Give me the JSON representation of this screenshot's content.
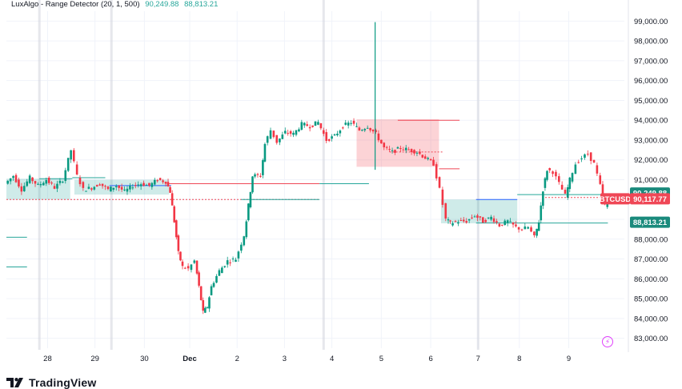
{
  "indicator": {
    "title": "LuxAlgo - Range Detector (20, 1, 500)",
    "value_upper": "90,249.88",
    "value_lower": "88,813.21"
  },
  "branding": {
    "logo_text": "TradingView"
  },
  "chart_data": {
    "type": "candlestick",
    "symbol": "BTCUSD",
    "y_axis": {
      "ticks": [
        83000,
        84000,
        85000,
        86000,
        87000,
        88000,
        89000,
        90000,
        91000,
        92000,
        93000,
        94000,
        95000,
        96000,
        97000,
        98000,
        99000
      ],
      "tick_labels": [
        "83,000.00",
        "84,000.00",
        "85,000.00",
        "86,000.00",
        "87,000.00",
        "88,000.00",
        "89,000.00",
        "90,000.00",
        "91,000.00",
        "92,000.00",
        "93,000.00",
        "94,000.00",
        "95,000.00",
        "96,000.00",
        "97,000.00",
        "98,000.00",
        "99,000.00"
      ],
      "range": [
        82500,
        99500
      ]
    },
    "x_axis": {
      "ticks": [
        "28",
        "29",
        "30",
        "Dec",
        "2",
        "3",
        "4",
        "5",
        "6",
        "7",
        "8",
        "9"
      ]
    },
    "price_labels": [
      {
        "name": "range-upper",
        "text": "90,249.88",
        "value": 90249.88,
        "color": "#1a8a7c"
      },
      {
        "name": "symbol",
        "text": "BTCUSD",
        "value": 90117.77,
        "color": "#ef4756"
      },
      {
        "name": "last-price",
        "text": "90,117.77",
        "value": 90117.77,
        "color": "#ef4756"
      },
      {
        "name": "range-lower",
        "text": "88,813.21",
        "value": 88813.21,
        "color": "#1a8a7c"
      }
    ],
    "ranges": [
      {
        "x0": 0.0,
        "x1": 1.55,
        "top": 91050,
        "bottom": 90000,
        "type": "green"
      },
      {
        "x0": 1.65,
        "x1": 3.95,
        "top": 91000,
        "bottom": 90250,
        "type": "green"
      },
      {
        "x0": 8.5,
        "x1": 10.5,
        "top": 94050,
        "bottom": 91650,
        "type": "red"
      },
      {
        "x0": 10.55,
        "x1": 12.4,
        "top": 90000,
        "bottom": 88800,
        "type": "green"
      }
    ],
    "level_lines": [
      {
        "x0": 0.8,
        "x1": 1.6,
        "y": 91050,
        "color": "#26a69a"
      },
      {
        "x0": 1.6,
        "x1": 2.4,
        "y": 91100,
        "color": "#26a69a"
      },
      {
        "x0": 2.5,
        "x1": 4.0,
        "y": 90700,
        "color": "#2962ff"
      },
      {
        "x0": 0.0,
        "x1": 0.5,
        "y": 88100,
        "color": "#26a69a"
      },
      {
        "x0": 0.0,
        "x1": 0.5,
        "y": 86600,
        "color": "#26a69a"
      },
      {
        "x0": 3.9,
        "x1": 7.6,
        "y": 90800,
        "color": "#ef4756"
      },
      {
        "x0": 0.0,
        "x1": 7.6,
        "y": 90000,
        "color": "#ef4756",
        "dash": true
      },
      {
        "x0": 5.7,
        "x1": 7.6,
        "y": 90000,
        "color": "#26a69a"
      },
      {
        "x0": 7.6,
        "x1": 8.8,
        "y": 90800,
        "color": "#26a69a"
      },
      {
        "x0": 9.5,
        "x1": 11.0,
        "y": 94000,
        "color": "#ef4756"
      },
      {
        "x0": 10.5,
        "x1": 11.0,
        "y": 91550,
        "color": "#ef4756"
      },
      {
        "x0": 9.3,
        "x1": 10.6,
        "y": 92400,
        "color": "#ef4756",
        "dash": true
      },
      {
        "x0": 11.4,
        "x1": 12.4,
        "y": 90000,
        "color": "#2962ff"
      },
      {
        "x0": 11.4,
        "x1": 14.6,
        "y": 88813,
        "color": "#26a69a"
      },
      {
        "x0": 12.4,
        "x1": 14.6,
        "y": 90249,
        "color": "#26a69a"
      },
      {
        "x0": 13.0,
        "x1": 14.6,
        "y": 90100,
        "color": "#ef4756",
        "dash": true
      }
    ],
    "session_separators": [
      0.8,
      2.55,
      7.7,
      11.45
    ],
    "spike": {
      "x": 8.95,
      "high": 98950,
      "low": 91500
    },
    "price_path": [
      [
        0.0,
        90800
      ],
      [
        0.2,
        91200
      ],
      [
        0.4,
        90500
      ],
      [
        0.6,
        91100
      ],
      [
        0.8,
        90700
      ],
      [
        1.0,
        91000
      ],
      [
        1.2,
        90600
      ],
      [
        1.4,
        91000
      ],
      [
        1.6,
        92500
      ],
      [
        1.75,
        91200
      ],
      [
        1.9,
        90500
      ],
      [
        2.1,
        90600
      ],
      [
        2.3,
        90800
      ],
      [
        2.5,
        90500
      ],
      [
        2.7,
        90700
      ],
      [
        2.9,
        90400
      ],
      [
        3.1,
        90700
      ],
      [
        3.3,
        90800
      ],
      [
        3.5,
        90700
      ],
      [
        3.7,
        91000
      ],
      [
        3.9,
        90900
      ],
      [
        4.0,
        90400
      ],
      [
        4.1,
        88900
      ],
      [
        4.2,
        87300
      ],
      [
        4.3,
        86600
      ],
      [
        4.45,
        86500
      ],
      [
        4.6,
        86900
      ],
      [
        4.7,
        85600
      ],
      [
        4.8,
        84300
      ],
      [
        4.9,
        84600
      ],
      [
        5.0,
        85600
      ],
      [
        5.2,
        86400
      ],
      [
        5.4,
        86900
      ],
      [
        5.6,
        87000
      ],
      [
        5.8,
        88200
      ],
      [
        5.9,
        89700
      ],
      [
        6.0,
        91200
      ],
      [
        6.2,
        91200
      ],
      [
        6.3,
        92800
      ],
      [
        6.45,
        93500
      ],
      [
        6.6,
        92900
      ],
      [
        6.8,
        93400
      ],
      [
        7.0,
        93300
      ],
      [
        7.2,
        93800
      ],
      [
        7.4,
        93700
      ],
      [
        7.6,
        93900
      ],
      [
        7.8,
        93000
      ],
      [
        8.0,
        93200
      ],
      [
        8.2,
        93700
      ],
      [
        8.4,
        93900
      ],
      [
        8.6,
        93500
      ],
      [
        8.8,
        93700
      ],
      [
        9.0,
        93300
      ],
      [
        9.2,
        92600
      ],
      [
        9.4,
        92400
      ],
      [
        9.6,
        92600
      ],
      [
        9.8,
        92500
      ],
      [
        10.0,
        92400
      ],
      [
        10.2,
        92100
      ],
      [
        10.4,
        91800
      ],
      [
        10.55,
        90500
      ],
      [
        10.7,
        89000
      ],
      [
        10.8,
        88800
      ],
      [
        11.0,
        88900
      ],
      [
        11.2,
        88900
      ],
      [
        11.4,
        89200
      ],
      [
        11.6,
        88900
      ],
      [
        11.8,
        89100
      ],
      [
        12.0,
        88700
      ],
      [
        12.2,
        88900
      ],
      [
        12.4,
        88600
      ],
      [
        12.55,
        88500
      ],
      [
        12.7,
        88600
      ],
      [
        12.85,
        88100
      ],
      [
        12.95,
        88900
      ],
      [
        13.05,
        90500
      ],
      [
        13.15,
        91500
      ],
      [
        13.3,
        91400
      ],
      [
        13.45,
        90800
      ],
      [
        13.6,
        90200
      ],
      [
        13.7,
        91000
      ],
      [
        13.85,
        91800
      ],
      [
        14.0,
        92100
      ],
      [
        14.15,
        92300
      ],
      [
        14.3,
        91800
      ],
      [
        14.45,
        90700
      ],
      [
        14.55,
        89700
      ],
      [
        14.7,
        90200
      ],
      [
        14.85,
        89900
      ],
      [
        15.0,
        90200
      ]
    ]
  }
}
